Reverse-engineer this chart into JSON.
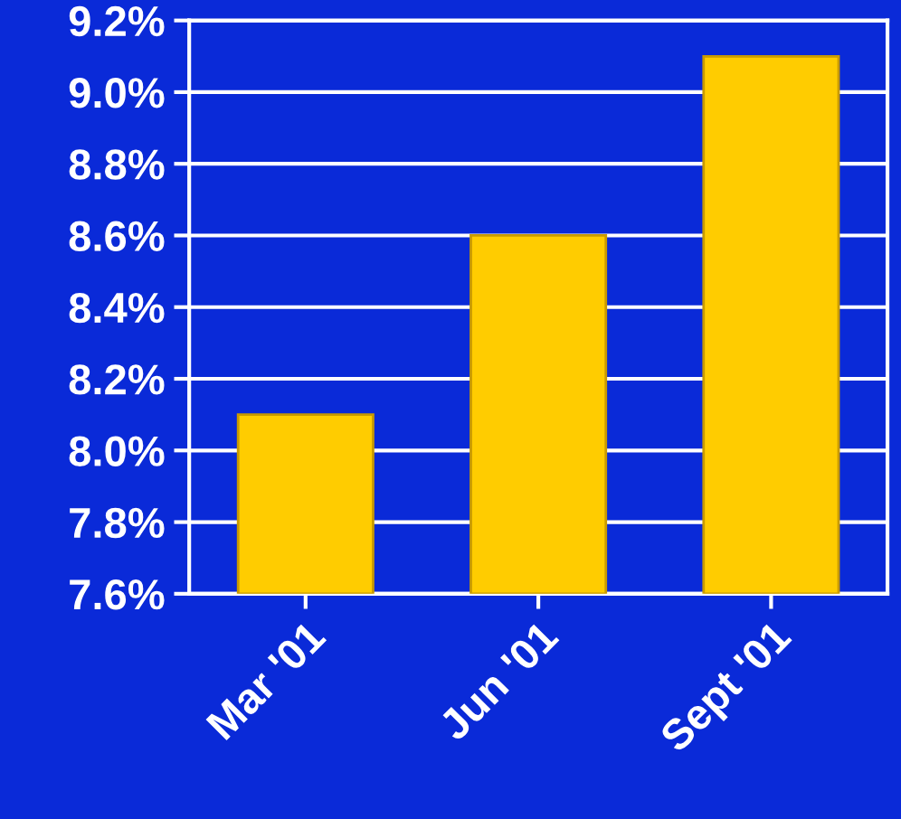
{
  "chart_data": {
    "type": "bar",
    "categories": [
      "Mar '01",
      "Jun '01",
      "Sept '01"
    ],
    "values": [
      8.1,
      8.6,
      9.1
    ],
    "color": "#ffcc00",
    "ylim": [
      7.6,
      9.2
    ],
    "yticks": [
      {
        "value": 7.6,
        "label": "7.6%"
      },
      {
        "value": 7.8,
        "label": "7.8%"
      },
      {
        "value": 8.0,
        "label": "8.0%"
      },
      {
        "value": 8.2,
        "label": "8.2%"
      },
      {
        "value": 8.4,
        "label": "8.4%"
      },
      {
        "value": 8.6,
        "label": "8.6%"
      },
      {
        "value": 8.8,
        "label": "8.8%"
      },
      {
        "value": 9.0,
        "label": "9.0%"
      },
      {
        "value": 9.2,
        "label": "9.2%"
      }
    ],
    "grid": "y"
  }
}
